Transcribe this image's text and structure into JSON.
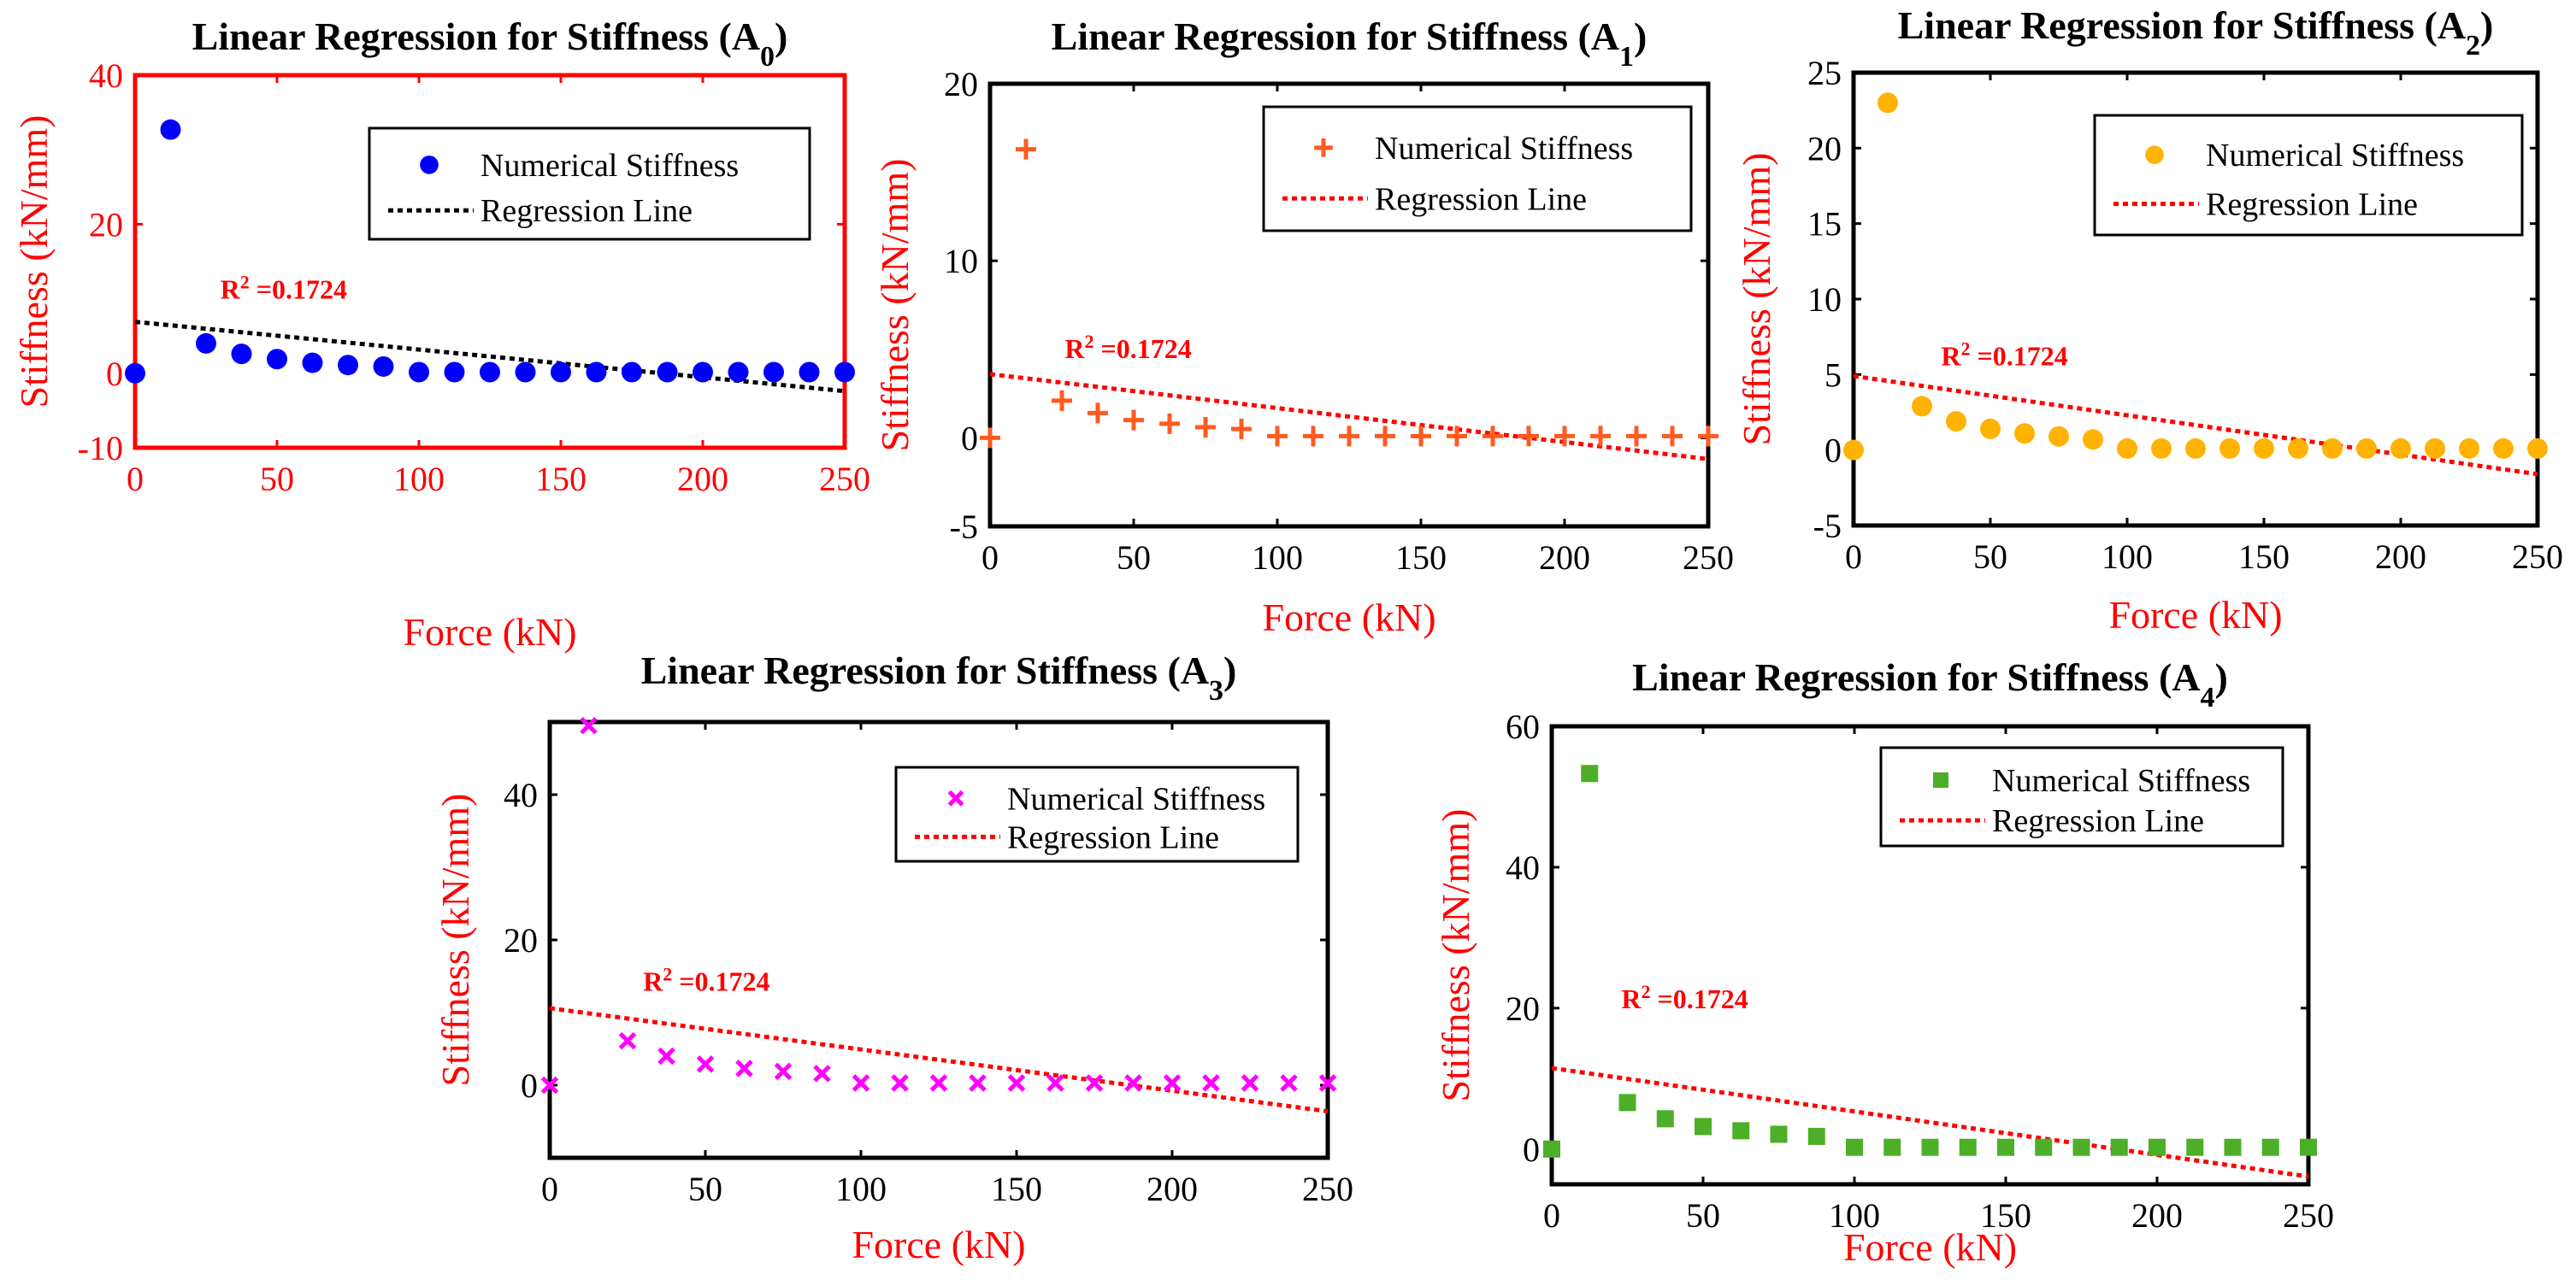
{
  "colors": {
    "a0_marker": "#0000ff",
    "a1_marker": "#ff5a1f",
    "a2_marker": "#ffb300",
    "a3_marker": "#ff00ff",
    "a4_marker": "#4caf27",
    "regression_red": "#ff0000",
    "regression_black": "#000000",
    "axis_red": "#ff0000",
    "axis_black": "#000000"
  },
  "chart_data": [
    {
      "id": "A0",
      "type": "scatter",
      "title_prefix": "Linear Regression for Stiffness (A",
      "title_sub": "0",
      "title_suffix": ")",
      "xlabel": "Force (kN)",
      "ylabel": "Stiffness (kN/mm)",
      "xlim": [
        0,
        250
      ],
      "ylim": [
        -10,
        40
      ],
      "xticks": [
        0,
        50,
        100,
        150,
        200,
        250
      ],
      "yticks": [
        -10,
        0,
        20,
        40
      ],
      "grid": false,
      "legend_position": "top-right",
      "axis_color": "#ff0000",
      "marker": "circle",
      "series": [
        {
          "name": "Numerical Stiffness",
          "x": [
            0,
            12.5,
            25,
            37.5,
            50,
            62.5,
            75,
            87.5,
            100,
            112.5,
            125,
            137.5,
            150,
            162.5,
            175,
            187.5,
            200,
            212.5,
            225,
            237.5,
            250
          ],
          "y": [
            0,
            32.7,
            4.0,
            2.6,
            1.9,
            1.4,
            1.1,
            0.9,
            0.15,
            0.15,
            0.15,
            0.15,
            0.15,
            0.15,
            0.15,
            0.15,
            0.15,
            0.15,
            0.15,
            0.15,
            0.15
          ]
        },
        {
          "name": "Regression Line",
          "x": [
            0,
            250
          ],
          "y": [
            6.9,
            -2.4
          ]
        }
      ],
      "annotation": {
        "prefix": "R",
        "sup": "2",
        "value": " =0.1724",
        "x": 30,
        "y": 10
      }
    },
    {
      "id": "A1",
      "type": "scatter",
      "title_prefix": "Linear Regression for Stiffness (A",
      "title_sub": "1",
      "title_suffix": ")",
      "xlabel": "Force (kN)",
      "ylabel": "Stiffness (kN/mm)",
      "xlim": [
        0,
        250
      ],
      "ylim": [
        -5,
        20
      ],
      "xticks": [
        0,
        50,
        100,
        150,
        200,
        250
      ],
      "yticks": [
        -5,
        0,
        10,
        20
      ],
      "grid": false,
      "legend_position": "top-right",
      "axis_color": "#000000",
      "marker": "plus",
      "series": [
        {
          "name": "Numerical Stiffness",
          "x": [
            0,
            12.5,
            25,
            37.5,
            50,
            62.5,
            75,
            87.5,
            100,
            112.5,
            125,
            137.5,
            150,
            162.5,
            175,
            187.5,
            200,
            212.5,
            225,
            237.5,
            250
          ],
          "y": [
            0,
            16.3,
            2.1,
            1.4,
            1.0,
            0.8,
            0.6,
            0.5,
            0.1,
            0.1,
            0.1,
            0.1,
            0.1,
            0.1,
            0.1,
            0.1,
            0.1,
            0.1,
            0.1,
            0.1,
            0.1
          ]
        },
        {
          "name": "Regression Line",
          "x": [
            0,
            250
          ],
          "y": [
            3.6,
            -1.2
          ]
        }
      ],
      "annotation": {
        "prefix": "R",
        "sup": "2",
        "value": " =0.1724",
        "x": 26,
        "y": 4.5
      }
    },
    {
      "id": "A2",
      "type": "scatter",
      "title_prefix": "Linear Regression for Stiffness (A",
      "title_sub": "2",
      "title_suffix": ")",
      "xlabel": "Force (kN)",
      "ylabel": "Stiffness (kN/mm)",
      "xlim": [
        0,
        250
      ],
      "ylim": [
        -5,
        25
      ],
      "xticks": [
        0,
        50,
        100,
        150,
        200,
        250
      ],
      "yticks": [
        -5,
        0,
        5,
        10,
        15,
        20,
        25
      ],
      "grid": false,
      "legend_position": "top-right",
      "axis_color": "#000000",
      "marker": "circle",
      "series": [
        {
          "name": "Numerical Stiffness",
          "x": [
            0,
            12.5,
            25,
            37.5,
            50,
            62.5,
            75,
            87.5,
            100,
            112.5,
            125,
            137.5,
            150,
            162.5,
            175,
            187.5,
            200,
            212.5,
            225,
            237.5,
            250
          ],
          "y": [
            0,
            23.0,
            2.9,
            1.9,
            1.4,
            1.1,
            0.9,
            0.7,
            0.1,
            0.1,
            0.1,
            0.1,
            0.1,
            0.1,
            0.1,
            0.1,
            0.1,
            0.1,
            0.1,
            0.1,
            0.1
          ]
        },
        {
          "name": "Regression Line",
          "x": [
            0,
            250
          ],
          "y": [
            4.9,
            -1.6
          ]
        }
      ],
      "annotation": {
        "prefix": "R",
        "sup": "2",
        "value": " =0.1724",
        "x": 32,
        "y": 5.6
      }
    },
    {
      "id": "A3",
      "type": "scatter",
      "title_prefix": "Linear Regression for Stiffness (A",
      "title_sub": "3",
      "title_suffix": ")",
      "xlabel": "Force (kN)",
      "ylabel": "Stiffness (kN/mm)",
      "xlim": [
        0,
        250
      ],
      "ylim": [
        -10,
        50
      ],
      "xticks": [
        0,
        50,
        100,
        150,
        200,
        250
      ],
      "yticks": [
        0,
        20,
        40
      ],
      "grid": false,
      "legend_position": "top-right",
      "axis_color": "#000000",
      "marker": "x",
      "series": [
        {
          "name": "Numerical Stiffness",
          "x": [
            0,
            12.5,
            25,
            37.5,
            50,
            62.5,
            75,
            87.5,
            100,
            112.5,
            125,
            137.5,
            150,
            162.5,
            175,
            187.5,
            200,
            212.5,
            225,
            237.5,
            250
          ],
          "y": [
            0,
            49.5,
            6.1,
            4.0,
            2.9,
            2.3,
            1.9,
            1.6,
            0.3,
            0.3,
            0.3,
            0.3,
            0.3,
            0.3,
            0.3,
            0.3,
            0.3,
            0.3,
            0.3,
            0.3,
            0.3
          ]
        },
        {
          "name": "Regression Line",
          "x": [
            0,
            250
          ],
          "y": [
            10.6,
            -3.6
          ]
        }
      ],
      "annotation": {
        "prefix": "R",
        "sup": "2",
        "value": " =0.1724",
        "x": 30,
        "y": 13
      }
    },
    {
      "id": "A4",
      "type": "scatter",
      "title_prefix": "Linear Regression for Stiffness (A",
      "title_sub": "4",
      "title_suffix": ")",
      "xlabel": "Force (kN)",
      "ylabel": "Stiffness (kN/mm)",
      "xlim": [
        0,
        250
      ],
      "ylim": [
        -5,
        60
      ],
      "xticks": [
        0,
        50,
        100,
        150,
        200,
        250
      ],
      "yticks": [
        0,
        20,
        40,
        60
      ],
      "grid": false,
      "legend_position": "top-right",
      "axis_color": "#000000",
      "marker": "square",
      "series": [
        {
          "name": "Numerical Stiffness",
          "x": [
            0,
            12.5,
            25,
            37.5,
            50,
            62.5,
            75,
            87.5,
            100,
            112.5,
            125,
            137.5,
            150,
            162.5,
            175,
            187.5,
            200,
            212.5,
            225,
            237.5,
            250
          ],
          "y": [
            0,
            53.3,
            6.6,
            4.3,
            3.2,
            2.6,
            2.1,
            1.8,
            0.25,
            0.25,
            0.25,
            0.25,
            0.25,
            0.25,
            0.25,
            0.25,
            0.25,
            0.25,
            0.25,
            0.25,
            0.25
          ]
        },
        {
          "name": "Regression Line",
          "x": [
            0,
            250
          ],
          "y": [
            11.5,
            -3.9
          ]
        }
      ],
      "annotation": {
        "prefix": "R",
        "sup": "2",
        "value": " =0.1724",
        "x": 23,
        "y": 20
      }
    }
  ]
}
